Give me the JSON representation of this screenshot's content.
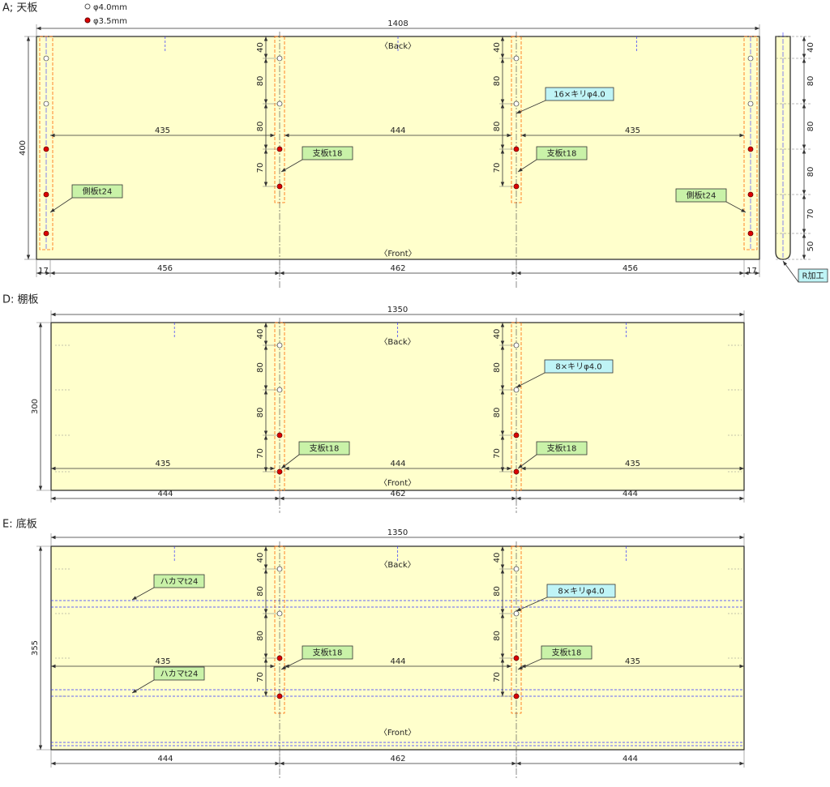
{
  "legend": {
    "hollow": "φ4.0mm",
    "red": "φ3.5mm"
  },
  "panels": [
    {
      "title": "A; 天板",
      "width": "1408",
      "height": "400",
      "back": "〈Back〉",
      "front": "〈Front〉",
      "inner_dims": [
        "435",
        "444",
        "435"
      ],
      "bottom_dims": [
        "17",
        "456",
        "462",
        "456",
        "17"
      ],
      "support_dims": [
        [
          "40",
          "80",
          "80",
          "70"
        ],
        [
          "40",
          "80",
          "80",
          "70"
        ]
      ],
      "callouts": [
        "16×キリφ4.0",
        "支板t18",
        "支板t18",
        "側板t24",
        "側板t24"
      ],
      "side_view": {
        "dims": [
          "40",
          "80",
          "80",
          "80",
          "70",
          "50"
        ],
        "callout": "R加工"
      }
    },
    {
      "title": "D: 棚板",
      "width": "1350",
      "height": "300",
      "back": "〈Back〉",
      "front": "〈Front〉",
      "inner_dims": [
        "435",
        "444",
        "435"
      ],
      "bottom_dims": [
        "444",
        "462",
        "444"
      ],
      "support_dims": [
        [
          "40",
          "80",
          "80",
          "70"
        ],
        [
          "40",
          "80",
          "80",
          "70"
        ]
      ],
      "callouts": [
        "8×キリφ4.0",
        "支板t18",
        "支板t18"
      ]
    },
    {
      "title": "E: 底板",
      "width": "1350",
      "height": "355",
      "back": "〈Back〉",
      "front": "〈Front〉",
      "inner_dims": [
        "435",
        "444",
        "435"
      ],
      "bottom_dims": [
        "444",
        "462",
        "444"
      ],
      "support_dims": [
        [
          "40",
          "80",
          "80",
          "70"
        ],
        [
          "40",
          "80",
          "80",
          "70"
        ]
      ],
      "callouts": [
        "ハカマt24",
        "ハカマt24",
        "8×キリφ4.0",
        "支板t18",
        "支板t18"
      ]
    }
  ]
}
